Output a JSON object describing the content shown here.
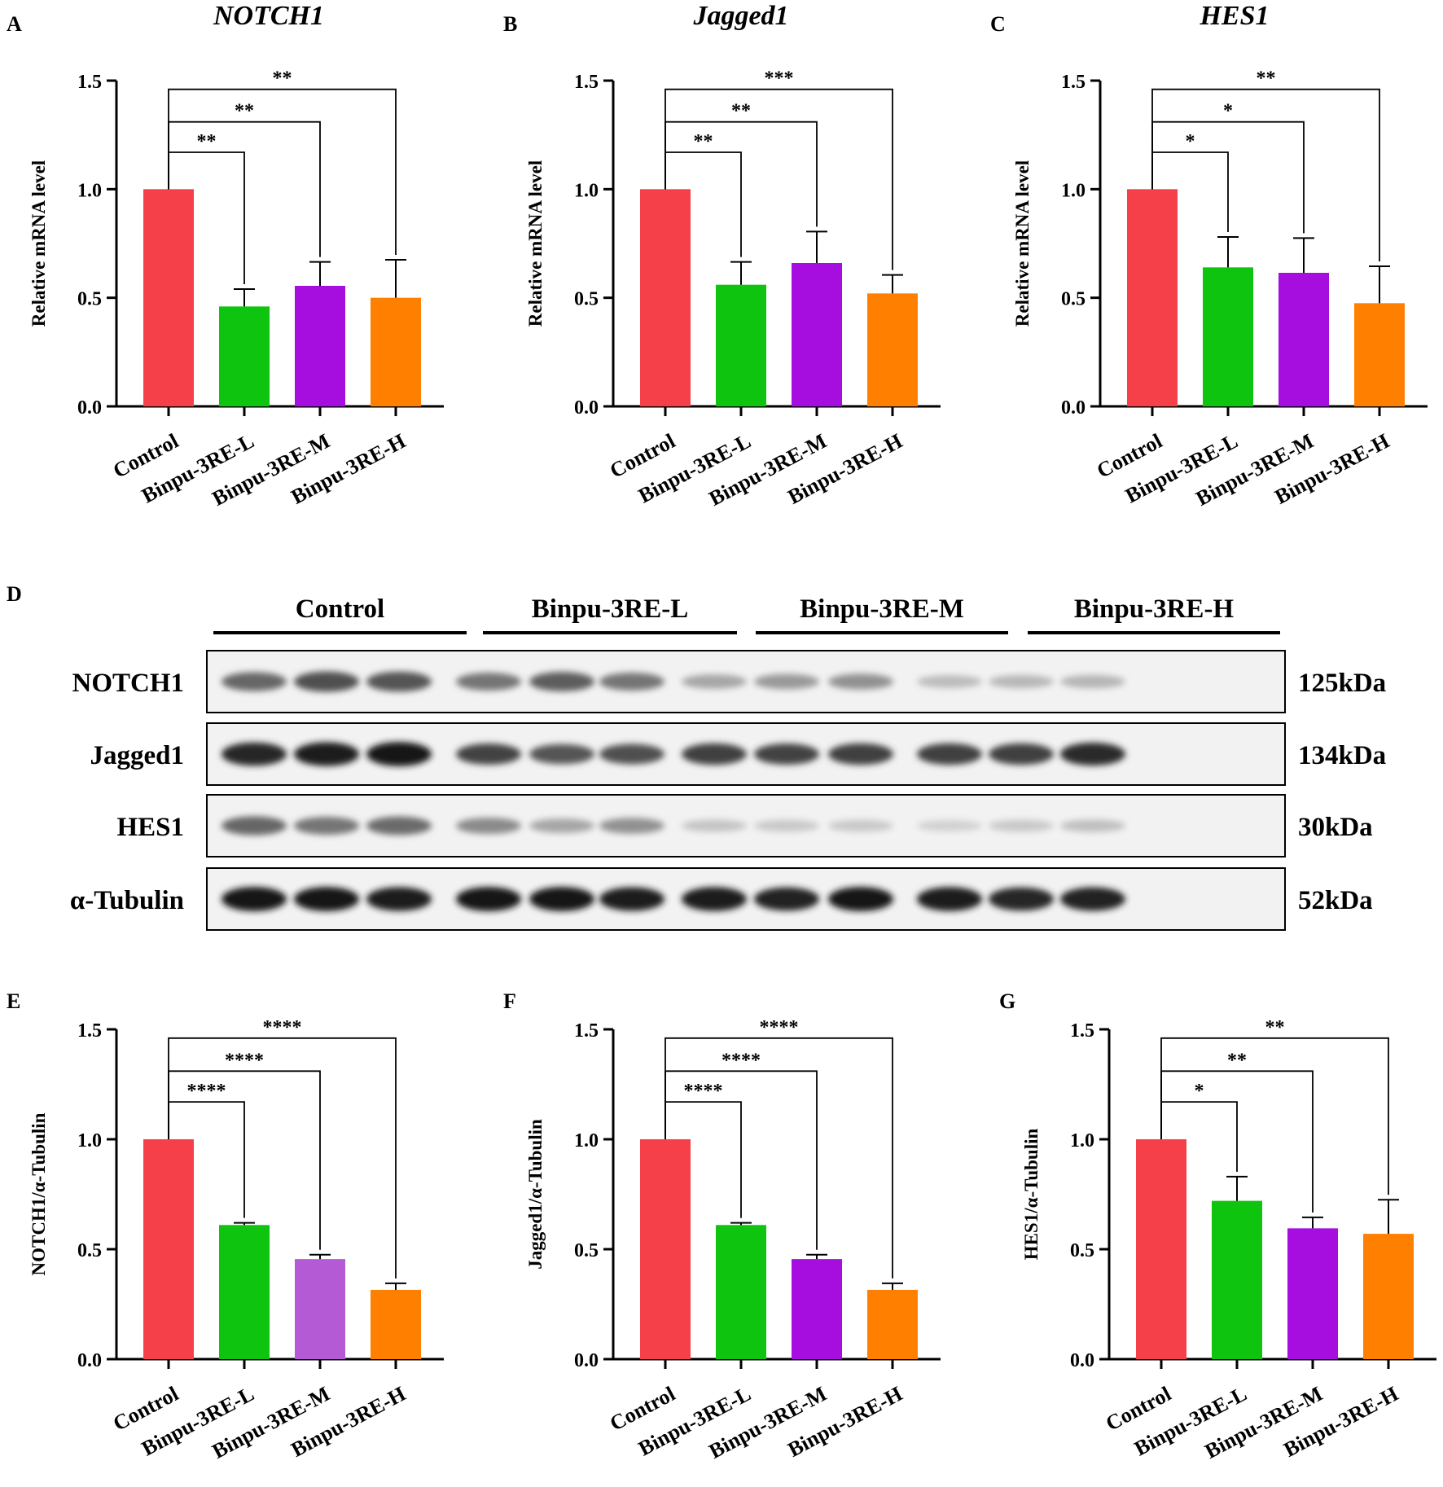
{
  "colors": {
    "control": "#f5404a",
    "low": "#0ec40e",
    "mid": "#a60ee0",
    "high": "#ff8000",
    "mid_pale": "#b45ad4"
  },
  "chart_data": [
    {
      "panel": "A",
      "type": "bar",
      "title": "NOTCH1",
      "ylabel": "Relative mRNA level",
      "categories": [
        "Control",
        "Binpu-3RE-L",
        "Binpu-3RE-M",
        "Binpu-3RE-H"
      ],
      "values": [
        1.0,
        0.46,
        0.555,
        0.5
      ],
      "errors": [
        0,
        0.08,
        0.11,
        0.175
      ],
      "ylim": [
        0,
        1.5
      ],
      "yticks": [
        "0.0",
        "0.5",
        "1.0",
        "1.5"
      ],
      "significance": [
        "**",
        "**",
        "**"
      ]
    },
    {
      "panel": "B",
      "type": "bar",
      "title": "Jagged1",
      "ylabel": "Relative mRNA level",
      "categories": [
        "Control",
        "Binpu-3RE-L",
        "Binpu-3RE-M",
        "Binpu-3RE-H"
      ],
      "values": [
        1.0,
        0.56,
        0.66,
        0.52
      ],
      "errors": [
        0,
        0.105,
        0.145,
        0.085
      ],
      "ylim": [
        0,
        1.5
      ],
      "yticks": [
        "0.0",
        "0.5",
        "1.0",
        "1.5"
      ],
      "significance": [
        "**",
        "**",
        "***"
      ]
    },
    {
      "panel": "C",
      "type": "bar",
      "title": "HES1",
      "ylabel": "Relative mRNA level",
      "categories": [
        "Control",
        "Binpu-3RE-L",
        "Binpu-3RE-M",
        "Binpu-3RE-H"
      ],
      "values": [
        1.0,
        0.64,
        0.615,
        0.475
      ],
      "errors": [
        0,
        0.14,
        0.16,
        0.17
      ],
      "ylim": [
        0,
        1.5
      ],
      "yticks": [
        "0.0",
        "0.5",
        "1.0",
        "1.5"
      ],
      "significance": [
        "*",
        "*",
        "**"
      ]
    },
    {
      "panel": "E",
      "type": "bar",
      "title": "",
      "ylabel": "NOTCH1/α-Tubulin",
      "categories": [
        "Control",
        "Binpu-3RE-L",
        "Binpu-3RE-M",
        "Binpu-3RE-H"
      ],
      "values": [
        1.0,
        0.61,
        0.455,
        0.315
      ],
      "errors": [
        0,
        0.01,
        0.02,
        0.03
      ],
      "ylim": [
        0,
        1.5
      ],
      "yticks": [
        "0.0",
        "0.5",
        "1.0",
        "1.5"
      ],
      "significance": [
        "****",
        "****",
        "****"
      ]
    },
    {
      "panel": "F",
      "type": "bar",
      "title": "",
      "ylabel": "Jagged1/α-Tubulin",
      "categories": [
        "Control",
        "Binpu-3RE-L",
        "Binpu-3RE-M",
        "Binpu-3RE-H"
      ],
      "values": [
        1.0,
        0.61,
        0.455,
        0.315
      ],
      "errors": [
        0,
        0.01,
        0.02,
        0.03
      ],
      "ylim": [
        0,
        1.5
      ],
      "yticks": [
        "0.0",
        "0.5",
        "1.0",
        "1.5"
      ],
      "significance": [
        "****",
        "****",
        "****"
      ]
    },
    {
      "panel": "G",
      "type": "bar",
      "title": "",
      "ylabel": "HES1/α-Tubulin",
      "categories": [
        "Control",
        "Binpu-3RE-L",
        "Binpu-3RE-M",
        "Binpu-3RE-H"
      ],
      "values": [
        1.0,
        0.72,
        0.595,
        0.57
      ],
      "errors": [
        0,
        0.11,
        0.05,
        0.155
      ],
      "ylim": [
        0,
        1.5
      ],
      "yticks": [
        "0.0",
        "0.5",
        "1.0",
        "1.5"
      ],
      "significance": [
        "*",
        "**",
        "**"
      ]
    }
  ],
  "western_blot": {
    "panel": "D",
    "groups": [
      "Control",
      "Binpu-3RE-L",
      "Binpu-3RE-M",
      "Binpu-3RE-H"
    ],
    "rows": [
      {
        "label": "NOTCH1",
        "kda": "125kDa",
        "intensity": [
          0.62,
          0.72,
          0.7,
          0.55,
          0.66,
          0.55,
          0.32,
          0.38,
          0.42,
          0.22,
          0.24,
          0.25
        ]
      },
      {
        "label": "Jagged1",
        "kda": "134kDa",
        "intensity": [
          0.92,
          0.96,
          0.98,
          0.78,
          0.7,
          0.72,
          0.8,
          0.78,
          0.8,
          0.8,
          0.8,
          0.9
        ]
      },
      {
        "label": "HES1",
        "kda": "30kDa",
        "intensity": [
          0.62,
          0.55,
          0.6,
          0.45,
          0.32,
          0.42,
          0.18,
          0.16,
          0.16,
          0.12,
          0.16,
          0.2
        ]
      },
      {
        "label": "α-Tubulin",
        "kda": "52kDa",
        "intensity": [
          0.98,
          0.98,
          0.96,
          0.98,
          0.98,
          0.95,
          0.97,
          0.93,
          0.98,
          0.97,
          0.92,
          0.94
        ]
      }
    ]
  }
}
